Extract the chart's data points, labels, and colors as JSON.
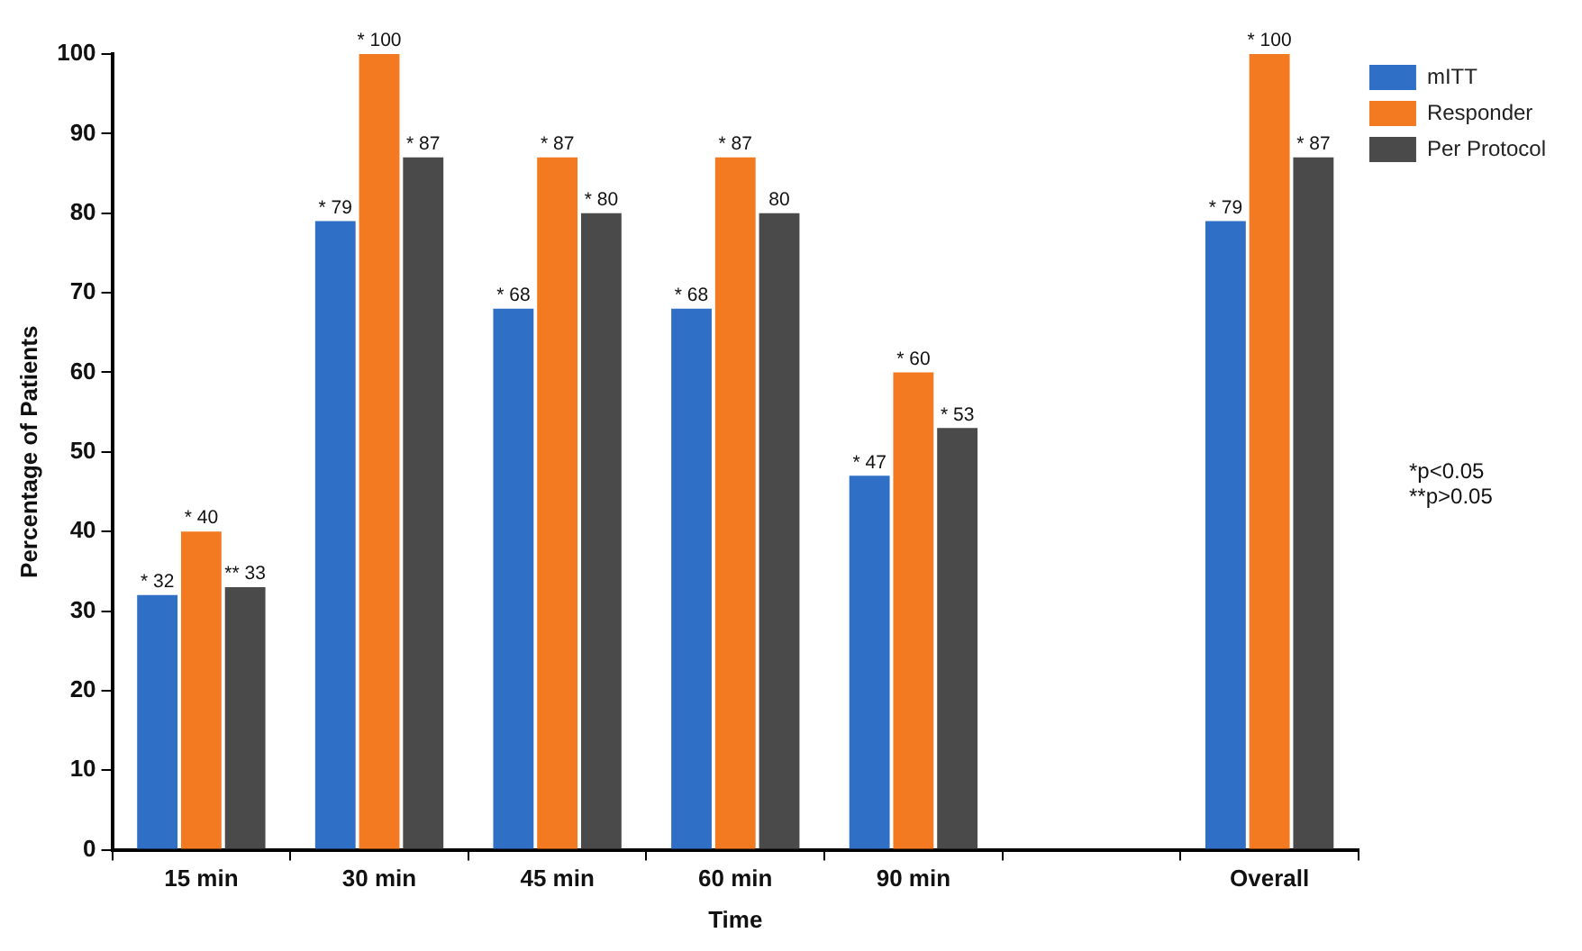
{
  "chart_data": {
    "type": "bar",
    "xlabel": "Time",
    "ylabel": "Percentage of Patients",
    "categories": [
      "15 min",
      "30 min",
      "45 min",
      "60 min",
      "90 min",
      null,
      "Overall"
    ],
    "series": [
      {
        "name": "mITT",
        "color": "#2f6fc6",
        "values": [
          32,
          79,
          68,
          68,
          47,
          null,
          79
        ],
        "value_labels": [
          "*\n32",
          "*\n79",
          "*\n68",
          "*\n68",
          "*\n47",
          null,
          "*\n79"
        ]
      },
      {
        "name": "Responder",
        "color": "#f37a21",
        "values": [
          40,
          100,
          87,
          87,
          60,
          null,
          100
        ],
        "value_labels": [
          "*\n40",
          "*\n100",
          "*\n87",
          "*\n87",
          "*\n60",
          null,
          "*\n100"
        ]
      },
      {
        "name": "Per Protocol",
        "color": "#4a4a4a",
        "values": [
          33,
          87,
          80,
          80,
          53,
          null,
          87
        ],
        "value_labels": [
          "**\n33",
          "*\n87",
          "*\n80",
          "80",
          "*\n53",
          null,
          "*\n87"
        ]
      }
    ],
    "ylim": [
      0,
      100
    ],
    "yticks": [
      0,
      10,
      20,
      30,
      40,
      50,
      60,
      70,
      80,
      90,
      100
    ],
    "grid": false,
    "legend": "top right",
    "annotations": [
      "*p<0.05",
      "**p>0.05"
    ]
  }
}
